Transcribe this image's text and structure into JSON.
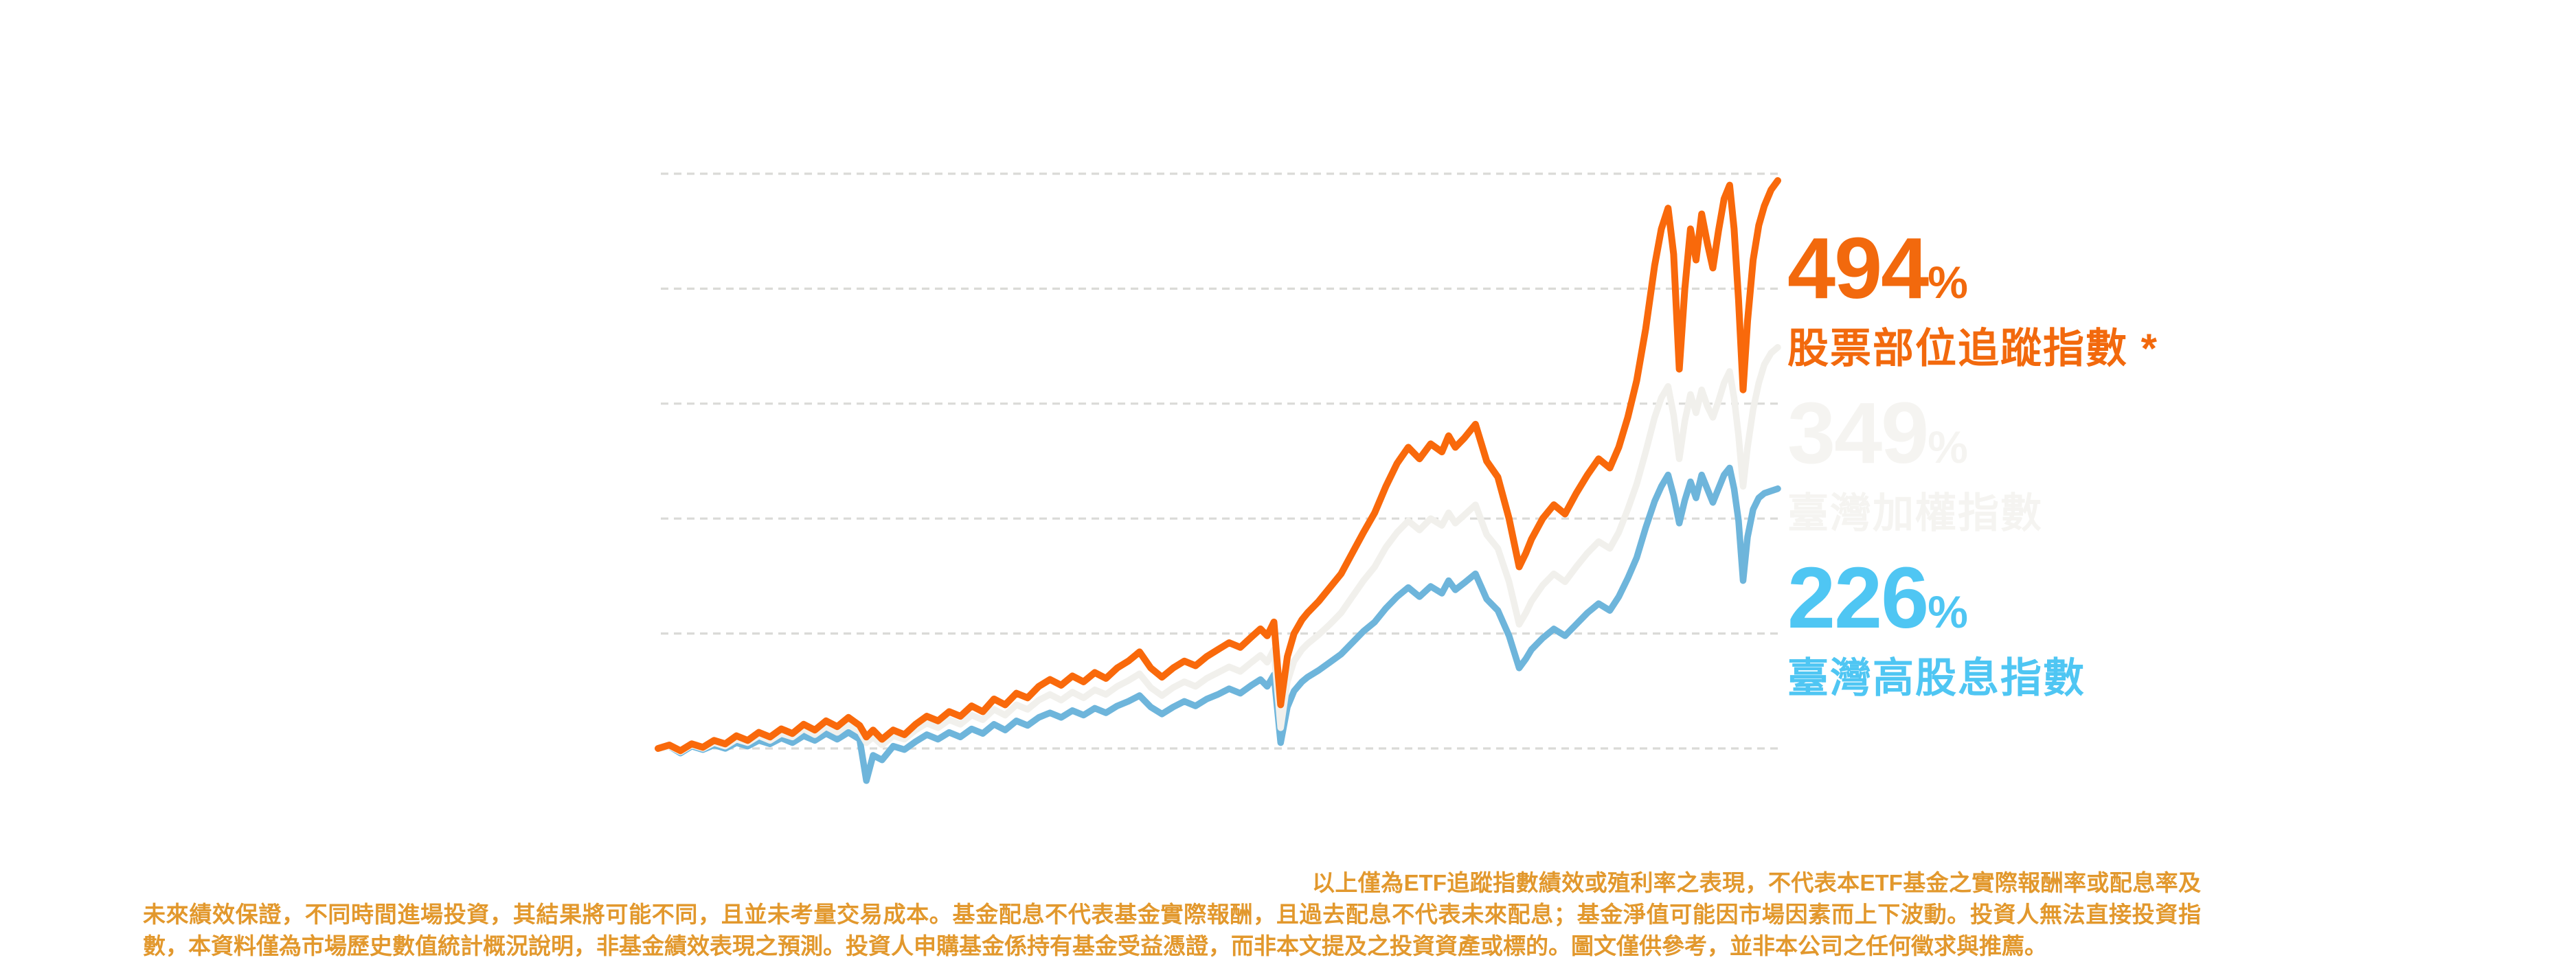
{
  "page": {
    "background_color": "#ffffff",
    "type": "fund-index-performance-infographic"
  },
  "chart_data": {
    "type": "line",
    "title": "",
    "xlabel": "",
    "ylabel": "",
    "legend_position": "right",
    "grid": "horizontal-dashed",
    "x_axis": {
      "range": [
        0,
        100
      ],
      "ticks_visible": false
    },
    "y_axis": {
      "unit": "%",
      "range": [
        0,
        500
      ],
      "gridlines": [
        0,
        100,
        200,
        300,
        400,
        500
      ],
      "gridline_style": "dashed",
      "gridline_color": "#DADAD7",
      "ticks_visible": false
    },
    "geometry": {
      "plot_left": 958,
      "plot_right": 2588,
      "grid_left": 962,
      "grid_right": 2592,
      "baseline_y": 1090,
      "top_y": 253,
      "y_max": 500
    },
    "x": [
      0,
      1,
      2,
      3,
      4,
      5,
      6,
      7,
      8,
      9,
      10,
      11,
      12,
      13,
      14,
      15,
      16,
      17,
      18,
      18.6,
      19.2,
      20,
      21,
      22,
      23,
      24,
      25,
      26,
      27,
      28,
      29,
      30,
      31,
      32,
      33,
      34,
      35,
      36,
      37,
      38,
      39,
      40,
      41,
      42,
      43,
      44,
      45,
      46,
      47,
      48,
      49,
      50,
      51,
      52,
      53,
      53.8,
      54.4,
      55,
      55.6,
      56.2,
      56.8,
      57.5,
      58,
      59,
      60,
      61,
      62,
      63,
      64,
      65,
      66,
      67,
      68,
      69,
      70,
      70.6,
      71.2,
      72,
      73,
      74,
      75,
      76,
      76.9,
      77.5,
      78,
      79,
      80,
      81,
      82,
      83,
      84,
      85,
      85.8,
      86.6,
      87.4,
      88.2,
      89,
      89.6,
      90.2,
      90.7,
      91.2,
      91.7,
      92.2,
      92.7,
      93.2,
      93.7,
      94.2,
      94.7,
      95.2,
      95.7,
      96.1,
      96.5,
      96.9,
      97.3,
      97.8,
      98.3,
      98.8,
      99.4,
      100
    ],
    "series": [
      {
        "id": "tracking-index",
        "name": "股票部位追蹤指數 *",
        "final_return_pct": 494,
        "color": "#F9690B",
        "stroke_width": 10,
        "values": [
          0,
          3,
          -2,
          4,
          1,
          7,
          4,
          11,
          7,
          14,
          10,
          17,
          13,
          21,
          16,
          24,
          19,
          27,
          20,
          10,
          16,
          8,
          16,
          12,
          21,
          28,
          24,
          32,
          28,
          37,
          32,
          43,
          38,
          48,
          44,
          54,
          60,
          55,
          63,
          58,
          66,
          61,
          70,
          76,
          84,
          70,
          62,
          70,
          76,
          72,
          80,
          86,
          92,
          88,
          97,
          104,
          98,
          110,
          38,
          80,
          100,
          112,
          118,
          128,
          140,
          152,
          170,
          188,
          205,
          228,
          248,
          262,
          252,
          265,
          258,
          272,
          262,
          270,
          282,
          250,
          236,
          200,
          158,
          170,
          182,
          200,
          212,
          204,
          222,
          238,
          252,
          244,
          262,
          288,
          320,
          365,
          420,
          452,
          470,
          430,
          330,
          400,
          452,
          425,
          465,
          440,
          418,
          450,
          478,
          490,
          452,
          390,
          312,
          372,
          425,
          455,
          472,
          486,
          494
        ]
      },
      {
        "id": "taiex-weighted-index",
        "name": "臺灣加權指數",
        "final_return_pct": 349,
        "color": "#F1F0EC",
        "stroke_width": 9.5,
        "values": [
          0,
          2,
          -3,
          3,
          0,
          5,
          2,
          8,
          5,
          11,
          7,
          13,
          10,
          17,
          12,
          19,
          14,
          21,
          15,
          5,
          10,
          3,
          11,
          8,
          16,
          22,
          18,
          25,
          21,
          29,
          25,
          34,
          29,
          38,
          34,
          42,
          47,
          42,
          49,
          44,
          51,
          47,
          54,
          59,
          65,
          53,
          46,
          53,
          58,
          54,
          61,
          66,
          71,
          67,
          75,
          81,
          75,
          86,
          18,
          58,
          76,
          86,
          91,
          99,
          108,
          118,
          132,
          146,
          158,
          175,
          188,
          198,
          190,
          200,
          194,
          205,
          196,
          203,
          212,
          186,
          174,
          145,
          108,
          118,
          128,
          142,
          152,
          145,
          158,
          170,
          180,
          174,
          188,
          208,
          230,
          258,
          288,
          305,
          315,
          290,
          252,
          285,
          308,
          292,
          312,
          298,
          288,
          302,
          318,
          328,
          305,
          272,
          228,
          262,
          295,
          318,
          334,
          344,
          349
        ]
      },
      {
        "id": "high-dividend-index",
        "name": "臺灣高股息指數",
        "final_return_pct": 226,
        "color": "#6EB5DB",
        "stroke_width": 9.5,
        "values": [
          0,
          2,
          -4,
          2,
          -1,
          3,
          0,
          5,
          2,
          7,
          4,
          9,
          5,
          11,
          7,
          13,
          8,
          14,
          8,
          -28,
          -6,
          -10,
          2,
          -1,
          6,
          12,
          8,
          14,
          10,
          17,
          13,
          21,
          16,
          24,
          20,
          27,
          31,
          27,
          33,
          29,
          35,
          31,
          37,
          41,
          46,
          36,
          30,
          36,
          41,
          37,
          43,
          47,
          52,
          48,
          55,
          60,
          54,
          64,
          5,
          36,
          50,
          58,
          62,
          68,
          75,
          82,
          92,
          102,
          110,
          122,
          132,
          140,
          132,
          141,
          135,
          146,
          138,
          144,
          152,
          130,
          120,
          98,
          70,
          78,
          86,
          96,
          104,
          98,
          108,
          118,
          126,
          120,
          132,
          148,
          166,
          192,
          215,
          228,
          238,
          220,
          196,
          216,
          232,
          218,
          238,
          226,
          214,
          226,
          238,
          244,
          226,
          198,
          146,
          184,
          208,
          218,
          222,
          224,
          226
        ]
      }
    ]
  },
  "labels": {
    "series1": {
      "value": "494",
      "pct": "%",
      "name": "股票部位追蹤指數 *",
      "color": "#F2690D"
    },
    "series2": {
      "value": "349",
      "pct": "%",
      "name": "臺灣加權指數",
      "color": "#F5F4F1"
    },
    "series3": {
      "value": "226",
      "pct": "%",
      "name": "臺灣高股息指數",
      "color": "#4FC6F3"
    }
  },
  "disclaimer": {
    "color": "#E2982D",
    "text": "以上僅為ETF追蹤指數績效或殖利率之表現，不代表本ETF基金之實際報酬率或配息率及未來績效保證，不同時間進場投資，其結果將可能不同，且並未考量交易成本。基金配息不代表基金實際報酬，且過去配息不代表未來配息；基金淨值可能因市場因素而上下波動。投資人無法直接投資指數，本資料僅為市場歷史數值統計概況說明，非基金績效表現之預測。投資人申購基金係持有基金受益憑證，而非本文提及之投資資產或標的。圖文僅供參考，並非本公司之任何徵求與推薦。"
  }
}
